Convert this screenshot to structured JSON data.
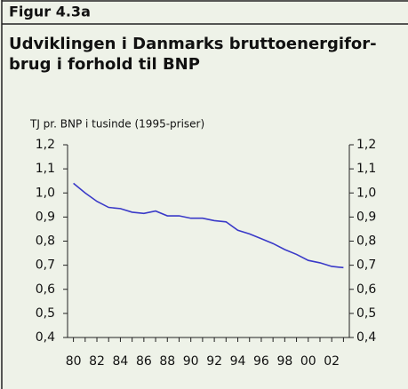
{
  "chart_data": {
    "type": "line",
    "figure_label": "Figur 4.3a",
    "title": [
      "Udviklingen i Danmarks bruttoenergifor-",
      "brug i forhold til BNP"
    ],
    "y_label": "TJ pr. BNP i tusinde (1995-priser)",
    "categories": [
      "80",
      null,
      "82",
      null,
      "84",
      null,
      "86",
      null,
      "88",
      null,
      "90",
      null,
      "92",
      null,
      "94",
      null,
      "96",
      null,
      "98",
      null,
      "00",
      null,
      "02",
      null
    ],
    "series": [
      {
        "color": "#3a3ac8",
        "values": [
          1.04,
          1.0,
          0.965,
          0.94,
          0.935,
          0.92,
          0.915,
          0.925,
          0.905,
          0.905,
          0.895,
          0.895,
          0.885,
          0.88,
          0.845,
          0.83,
          0.81,
          0.79,
          0.765,
          0.745,
          0.72,
          0.71,
          0.695,
          0.69
        ]
      }
    ],
    "ylim": [
      0.4,
      1.2
    ],
    "yticks": [
      {
        "value": 0.4,
        "label": "0,4"
      },
      {
        "value": 0.5,
        "label": "0,5"
      },
      {
        "value": 0.6,
        "label": "0,6"
      },
      {
        "value": 0.7,
        "label": "0,7"
      },
      {
        "value": 0.8,
        "label": "0,8"
      },
      {
        "value": 0.9,
        "label": "0,9"
      },
      {
        "value": 1.0,
        "label": "1,0"
      },
      {
        "value": 1.1,
        "label": "1,1"
      },
      {
        "value": 1.2,
        "label": "1,2"
      }
    ],
    "y2lim": [
      0.4,
      1.2
    ],
    "y2ticks": [
      {
        "value": 0.4,
        "label": "0,4"
      },
      {
        "value": 0.5,
        "label": "0,5"
      },
      {
        "value": 0.6,
        "label": "0,6"
      },
      {
        "value": 0.7,
        "label": "0,7"
      },
      {
        "value": 0.8,
        "label": "0,8"
      },
      {
        "value": 0.9,
        "label": "0,9"
      },
      {
        "value": 1.0,
        "label": "1,0"
      },
      {
        "value": 1.1,
        "label": "1,1"
      },
      {
        "value": 1.2,
        "label": "1,2"
      }
    ]
  }
}
